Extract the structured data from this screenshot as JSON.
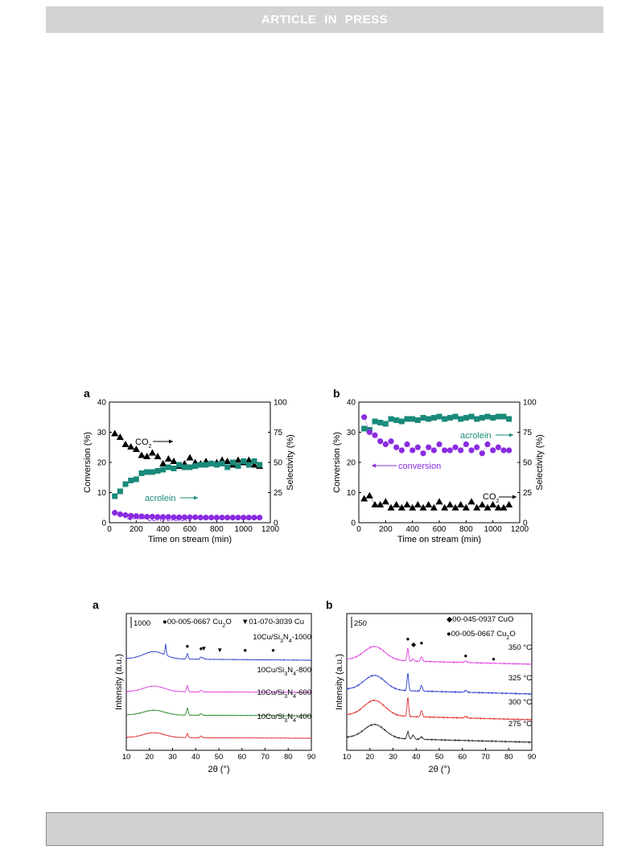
{
  "header": {
    "banner": "ARTICLE IN PRESS"
  },
  "colors": {
    "acrolein": "#1a8a7a",
    "conversion": "#8a2be2",
    "co2": "#000000",
    "xrd_1000": "#2b3fcc",
    "xrd_800": "#e040e0",
    "xrd_600": "#2a8a2a",
    "xrd_400": "#e03030",
    "xrd_350": "#e040e0",
    "xrd_325": "#2b3fcc",
    "xrd_300": "#e03030",
    "xrd_275": "#222222"
  },
  "chart_data": [
    {
      "panel": "a",
      "type": "scatter",
      "xlabel": "Time on stream (min)",
      "ylabel": "Conversion (%)",
      "y2label": "Selectivity (%)",
      "xlim": [
        0,
        1200
      ],
      "ylim": [
        0,
        40
      ],
      "y2lim": [
        0,
        100
      ],
      "xticks": [
        "0",
        "200",
        "400",
        "600",
        "800",
        "1000",
        "1200"
      ],
      "yticks": [
        "0",
        "10",
        "20",
        "30",
        "40"
      ],
      "y2ticks": [
        "0",
        "25",
        "50",
        "75",
        "100"
      ],
      "series": [
        {
          "key": "co2",
          "marker": "triangle",
          "axis": "right",
          "label_main": "CO",
          "label_sub": "2",
          "x": [
            40,
            80,
            120,
            160,
            200,
            240,
            280,
            320,
            360,
            400,
            440,
            480,
            520,
            560,
            600,
            640,
            680,
            720,
            760,
            800,
            840,
            880,
            920,
            960,
            1000,
            1040,
            1080,
            1120
          ],
          "y": [
            74,
            71,
            65,
            63,
            61,
            56,
            55,
            58,
            55,
            49,
            53,
            51,
            47,
            49,
            54,
            50,
            49,
            51,
            49,
            50,
            52,
            51,
            48,
            52,
            50,
            52,
            48,
            47
          ]
        },
        {
          "key": "acrolein",
          "marker": "square",
          "axis": "right",
          "label_main": "acrolein",
          "x": [
            40,
            80,
            120,
            160,
            200,
            240,
            280,
            320,
            360,
            400,
            440,
            480,
            520,
            560,
            600,
            640,
            680,
            720,
            760,
            800,
            840,
            880,
            920,
            960,
            1000,
            1040,
            1080,
            1120
          ],
          "y": [
            22,
            26,
            32,
            35,
            36,
            41,
            42,
            42,
            43,
            44,
            46,
            45,
            48,
            46,
            46,
            47,
            48,
            48,
            49,
            48,
            49,
            46,
            50,
            47,
            51,
            48,
            51,
            48
          ]
        },
        {
          "key": "conversion",
          "marker": "circle",
          "axis": "left",
          "label_main": "conversion",
          "x": [
            40,
            80,
            120,
            160,
            200,
            240,
            280,
            320,
            360,
            400,
            440,
            480,
            520,
            560,
            600,
            640,
            680,
            720,
            760,
            800,
            840,
            880,
            920,
            960,
            1000,
            1040,
            1080,
            1120
          ],
          "y": [
            3.3,
            2.8,
            2.5,
            2.3,
            2.2,
            2.1,
            2.0,
            2.0,
            1.9,
            1.9,
            1.9,
            1.8,
            1.8,
            1.8,
            1.8,
            1.8,
            1.7,
            1.7,
            1.7,
            1.7,
            1.7,
            1.7,
            1.7,
            1.7,
            1.7,
            1.7,
            1.7,
            1.7
          ]
        }
      ]
    },
    {
      "panel": "b",
      "type": "scatter",
      "xlabel": "Time on stream (min)",
      "ylabel": "Conversion (%)",
      "y2label": "Selectivity (%)",
      "xlim": [
        0,
        1200
      ],
      "ylim": [
        0,
        40
      ],
      "y2lim": [
        0,
        100
      ],
      "xticks": [
        "0",
        "200",
        "400",
        "600",
        "800",
        "1000",
        "1200"
      ],
      "yticks": [
        "0",
        "10",
        "20",
        "30",
        "40"
      ],
      "y2ticks": [
        "0",
        "25",
        "50",
        "75",
        "100"
      ],
      "series": [
        {
          "key": "acrolein",
          "marker": "square",
          "axis": "right",
          "label_main": "acrolein",
          "x": [
            40,
            80,
            120,
            160,
            200,
            240,
            280,
            320,
            360,
            400,
            440,
            480,
            520,
            560,
            600,
            640,
            680,
            720,
            760,
            800,
            840,
            880,
            920,
            960,
            1000,
            1040,
            1080,
            1120
          ],
          "y": [
            78,
            77,
            84,
            83,
            82,
            86,
            85,
            84,
            86,
            86,
            85,
            87,
            86,
            87,
            88,
            86,
            87,
            88,
            86,
            87,
            88,
            86,
            87,
            88,
            87,
            88,
            88,
            86
          ]
        },
        {
          "key": "conversion",
          "marker": "circle",
          "axis": "left",
          "label_main": "conversion",
          "x": [
            40,
            80,
            120,
            160,
            200,
            240,
            280,
            320,
            360,
            400,
            440,
            480,
            520,
            560,
            600,
            640,
            680,
            720,
            760,
            800,
            840,
            880,
            920,
            960,
            1000,
            1040,
            1080,
            1120
          ],
          "y": [
            35,
            30,
            29,
            27,
            26,
            27,
            25,
            24,
            26,
            24,
            25,
            23,
            25,
            24,
            26,
            24,
            24,
            25,
            24,
            26,
            24,
            25,
            23,
            26,
            24,
            25,
            24,
            24
          ]
        },
        {
          "key": "co2",
          "marker": "triangle",
          "axis": "left",
          "label_main": "CO",
          "label_sub": "2",
          "x": [
            40,
            80,
            120,
            160,
            200,
            240,
            280,
            320,
            360,
            400,
            440,
            480,
            520,
            560,
            600,
            640,
            680,
            720,
            760,
            800,
            840,
            880,
            920,
            960,
            1000,
            1040,
            1080,
            1120
          ],
          "y": [
            8,
            9,
            6,
            6,
            7,
            5,
            6,
            5,
            6,
            5,
            6,
            5,
            6,
            5,
            7,
            5,
            6,
            5,
            6,
            5,
            7,
            5,
            6,
            5,
            6,
            5,
            5,
            6
          ]
        }
      ]
    },
    {
      "panel": "a",
      "type": "line",
      "xlabel": "2θ (°)",
      "ylabel": "Intensity (a.u.)",
      "xlim": [
        10,
        90
      ],
      "xticks": [
        "10",
        "20",
        "30",
        "40",
        "50",
        "60",
        "70",
        "80",
        "90"
      ],
      "scalebar": "1000",
      "legend": [
        {
          "symbol": "●",
          "text": "00-005-0667 Cu",
          "sub": "2",
          "tail": "O"
        },
        {
          "symbol": "▼",
          "text": "01-070-3039 Cu",
          "sub": "",
          "tail": ""
        }
      ],
      "series": [
        {
          "key": "xrd_1000",
          "label": "10Cu/Si",
          "sub": "3",
          "mid": "N",
          "sub2": "4",
          "tail": "-1000"
        },
        {
          "key": "xrd_800",
          "label": "10Cu/Si",
          "sub": "3",
          "mid": "N",
          "sub2": "4",
          "tail": "-800"
        },
        {
          "key": "xrd_600",
          "label": "10Cu/Si",
          "sub": "3",
          "mid": "N",
          "sub2": "4",
          "tail": "-600"
        },
        {
          "key": "xrd_400",
          "label": "10Cu/Si",
          "sub": "3",
          "mid": "N",
          "sub2": "4",
          "tail": "-400"
        }
      ],
      "peaks_cu2o": [
        36.4,
        42.3,
        61.4,
        73.5
      ],
      "peaks_cu": [
        43.3,
        50.4
      ]
    },
    {
      "panel": "b",
      "type": "line",
      "xlabel": "2θ (°)",
      "ylabel": "Intensity (a.u.)",
      "xlim": [
        10,
        90
      ],
      "xticks": [
        "10",
        "20",
        "30",
        "40",
        "50",
        "60",
        "70",
        "80",
        "90"
      ],
      "scalebar": "250",
      "legend": [
        {
          "symbol": "◆",
          "text": "00-045-0937 CuO",
          "sub": "",
          "tail": ""
        },
        {
          "symbol": "●",
          "text": "00-005-0667 Cu",
          "sub": "2",
          "tail": "O"
        }
      ],
      "series": [
        {
          "key": "xrd_350",
          "label": "350 °C"
        },
        {
          "key": "xrd_325",
          "label": "325 °C"
        },
        {
          "key": "xrd_300",
          "label": "300 °C"
        },
        {
          "key": "xrd_275",
          "label": "275 °C"
        }
      ],
      "peaks_cu2o": [
        36.4,
        42.3,
        61.4,
        73.5
      ],
      "peaks_cuo": [
        38.7
      ]
    }
  ]
}
